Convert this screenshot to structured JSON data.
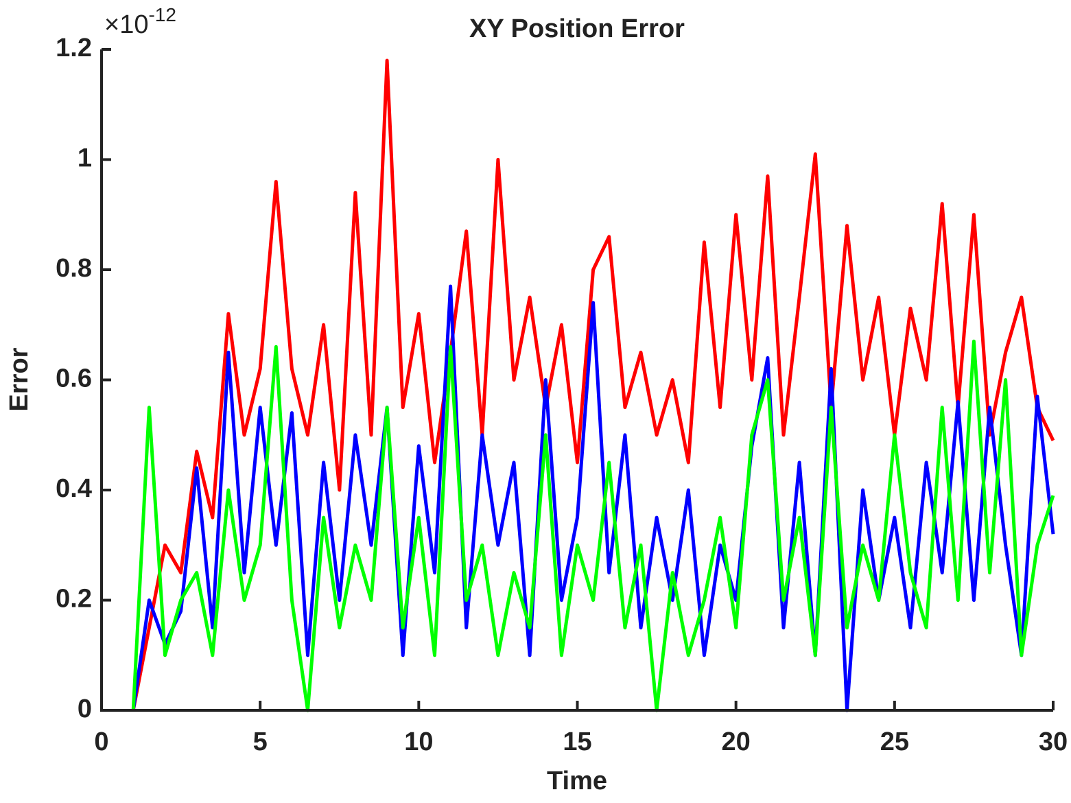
{
  "chart_data": {
    "type": "line",
    "title": "XY Position Error",
    "xlabel": "Time",
    "ylabel": "Error",
    "y_multiplier_base": "×10",
    "y_multiplier_exponent": "-12",
    "x": [
      1,
      1.5,
      2,
      2.5,
      3,
      3.5,
      4,
      4.5,
      5,
      5.5,
      6,
      6.5,
      7,
      7.5,
      8,
      8.5,
      9,
      9.5,
      10,
      10.5,
      11,
      11.5,
      12,
      12.5,
      13,
      13.5,
      14,
      14.5,
      15,
      15.5,
      16,
      16.5,
      17,
      17.5,
      18,
      18.5,
      19,
      19.5,
      20,
      20.5,
      21,
      21.5,
      22,
      22.5,
      23,
      23.5,
      24,
      24.5,
      25,
      25.5,
      26,
      26.5,
      27,
      27.5,
      28,
      28.5,
      29,
      29.5,
      30
    ],
    "series": [
      {
        "color": "#ff0000",
        "values": [
          0,
          0.15,
          0.3,
          0.25,
          0.47,
          0.35,
          0.72,
          0.5,
          0.62,
          0.96,
          0.62,
          0.5,
          0.7,
          0.4,
          0.94,
          0.5,
          1.18,
          0.55,
          0.72,
          0.45,
          0.65,
          0.87,
          0.5,
          1.0,
          0.6,
          0.75,
          0.55,
          0.7,
          0.45,
          0.8,
          0.86,
          0.55,
          0.65,
          0.5,
          0.6,
          0.45,
          0.85,
          0.55,
          0.9,
          0.6,
          0.97,
          0.5,
          0.75,
          1.01,
          0.55,
          0.88,
          0.6,
          0.75,
          0.5,
          0.73,
          0.6,
          0.92,
          0.55,
          0.9,
          0.5,
          0.65,
          0.75,
          0.55,
          0.49
        ]
      },
      {
        "color": "#0000ff",
        "values": [
          0,
          0.2,
          0.12,
          0.18,
          0.44,
          0.15,
          0.65,
          0.25,
          0.55,
          0.3,
          0.54,
          0.1,
          0.45,
          0.2,
          0.5,
          0.3,
          0.55,
          0.1,
          0.48,
          0.25,
          0.77,
          0.15,
          0.5,
          0.3,
          0.45,
          0.1,
          0.6,
          0.2,
          0.35,
          0.74,
          0.25,
          0.5,
          0.15,
          0.35,
          0.2,
          0.4,
          0.1,
          0.3,
          0.2,
          0.48,
          0.64,
          0.15,
          0.45,
          0.1,
          0.62,
          0,
          0.4,
          0.2,
          0.35,
          0.15,
          0.45,
          0.25,
          0.56,
          0.2,
          0.55,
          0.3,
          0.1,
          0.57,
          0.32
        ]
      },
      {
        "color": "#00ff00",
        "values": [
          0,
          0.55,
          0.1,
          0.2,
          0.25,
          0.1,
          0.4,
          0.2,
          0.3,
          0.66,
          0.2,
          0,
          0.35,
          0.15,
          0.3,
          0.2,
          0.55,
          0.15,
          0.35,
          0.1,
          0.66,
          0.2,
          0.3,
          0.1,
          0.25,
          0.15,
          0.5,
          0.1,
          0.3,
          0.2,
          0.45,
          0.15,
          0.3,
          0,
          0.25,
          0.1,
          0.2,
          0.35,
          0.15,
          0.5,
          0.6,
          0.2,
          0.35,
          0.1,
          0.55,
          0.15,
          0.3,
          0.2,
          0.5,
          0.25,
          0.15,
          0.55,
          0.2,
          0.67,
          0.25,
          0.6,
          0.1,
          0.3,
          0.39
        ]
      }
    ],
    "xlim": [
      0,
      30
    ],
    "xticks": [
      0,
      5,
      10,
      15,
      20,
      25,
      30
    ],
    "ylim": [
      0,
      1.2
    ],
    "yticks": [
      0,
      0.2,
      0.4,
      0.6,
      0.8,
      1,
      1.2
    ],
    "grid": false
  }
}
